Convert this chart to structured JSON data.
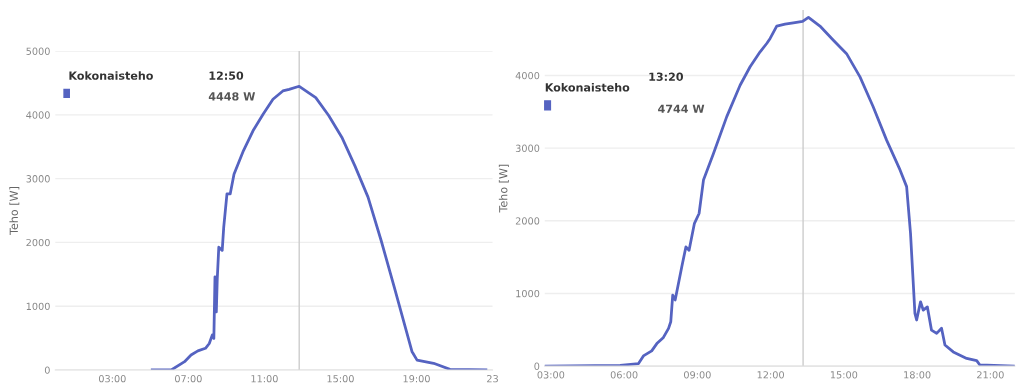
{
  "chart_data": [
    {
      "type": "line",
      "ylabel": "Teho [W]",
      "grid": "y",
      "line_style": "solid",
      "marker": "none",
      "xlim": [
        0,
        23
      ],
      "xticks": [
        {
          "value": 3,
          "label": "03:00"
        },
        {
          "value": 7,
          "label": "07:00"
        },
        {
          "value": 11,
          "label": "11:00"
        },
        {
          "value": 15,
          "label": "15:00"
        },
        {
          "value": 19,
          "label": "19:00"
        },
        {
          "value": 23,
          "label": "23"
        }
      ],
      "ylim": [
        0,
        5000
      ],
      "yticks": [
        0,
        1000,
        2000,
        3000,
        4000,
        5000
      ],
      "ref_lines": [
        {
          "axis": "x",
          "value": 12.83,
          "color": "#cccccc"
        }
      ],
      "annotations": [
        "Kokonaisteho",
        "12:50",
        "4448 W"
      ],
      "series": [
        {
          "color": "#5563c1",
          "x": [
            5.1,
            6.1,
            6.8,
            7.14,
            7.5,
            7.9,
            8.1,
            8.26,
            8.34,
            8.4,
            8.47,
            8.52,
            8.6,
            8.78,
            8.86,
            9.03,
            9.2,
            9.4,
            9.9,
            10.4,
            10.93,
            11.45,
            11.97,
            12.3,
            12.83,
            13.7,
            14.38,
            15.07,
            15.76,
            16.45,
            17.14,
            17.83,
            18.5,
            18.76,
            19.03,
            19.9,
            20.76,
            22.65
          ],
          "values": [
            0,
            0,
            130,
            235,
            300,
            340,
            415,
            550,
            495,
            1460,
            910,
            1430,
            1925,
            1875,
            2240,
            2760,
            2760,
            3070,
            3440,
            3750,
            4010,
            4245,
            4375,
            4400,
            4448,
            4270,
            3990,
            3650,
            3200,
            2710,
            2030,
            1300,
            575,
            290,
            155,
            105,
            10,
            0
          ]
        }
      ]
    },
    {
      "type": "line",
      "ylabel": "Teho [W]",
      "grid": "y",
      "line_style": "solid",
      "marker": "none",
      "xlim": [
        2.75,
        22
      ],
      "xticks": [
        {
          "value": 3,
          "label": "03:00"
        },
        {
          "value": 6,
          "label": "06:00"
        },
        {
          "value": 9,
          "label": "09:00"
        },
        {
          "value": 12,
          "label": "12:00"
        },
        {
          "value": 15,
          "label": "15:00"
        },
        {
          "value": 18,
          "label": "18:00"
        },
        {
          "value": 21,
          "label": "21:00"
        }
      ],
      "ylim": [
        0,
        4900
      ],
      "yticks": [
        0,
        1000,
        2000,
        3000,
        4000
      ],
      "ref_lines": [
        {
          "axis": "x",
          "value": 13.33,
          "color": "#cccccc"
        }
      ],
      "annotations": [
        "Kokonaisteho",
        "13:20",
        "4744 W"
      ],
      "series": [
        {
          "color": "#5563c1",
          "x": [
            2.77,
            5.84,
            6.59,
            6.79,
            7.13,
            7.34,
            7.61,
            7.82,
            7.91,
            7.99,
            8.09,
            8.36,
            8.53,
            8.66,
            8.88,
            9.07,
            9.25,
            9.66,
            10.2,
            10.75,
            11.16,
            11.57,
            11.84,
            11.98,
            12.25,
            12.59,
            12.93,
            13.31,
            13.55,
            14.02,
            14.57,
            15.11,
            15.66,
            16.2,
            16.75,
            17.3,
            17.57,
            17.73,
            17.91,
            17.98,
            18.14,
            18.25,
            18.42,
            18.59,
            18.8,
            19.0,
            19.14,
            19.48,
            20.03,
            20.44,
            20.57,
            22.0
          ],
          "values": [
            0,
            10,
            35,
            140,
            210,
            310,
            395,
            520,
            610,
            975,
            910,
            1365,
            1640,
            1595,
            1965,
            2100,
            2560,
            2925,
            3430,
            3865,
            4120,
            4325,
            4440,
            4510,
            4680,
            4705,
            4725,
            4744,
            4800,
            4680,
            4485,
            4300,
            3980,
            3570,
            3110,
            2700,
            2470,
            1825,
            725,
            635,
            885,
            770,
            815,
            495,
            450,
            520,
            290,
            195,
            105,
            75,
            15,
            0
          ]
        }
      ]
    }
  ]
}
